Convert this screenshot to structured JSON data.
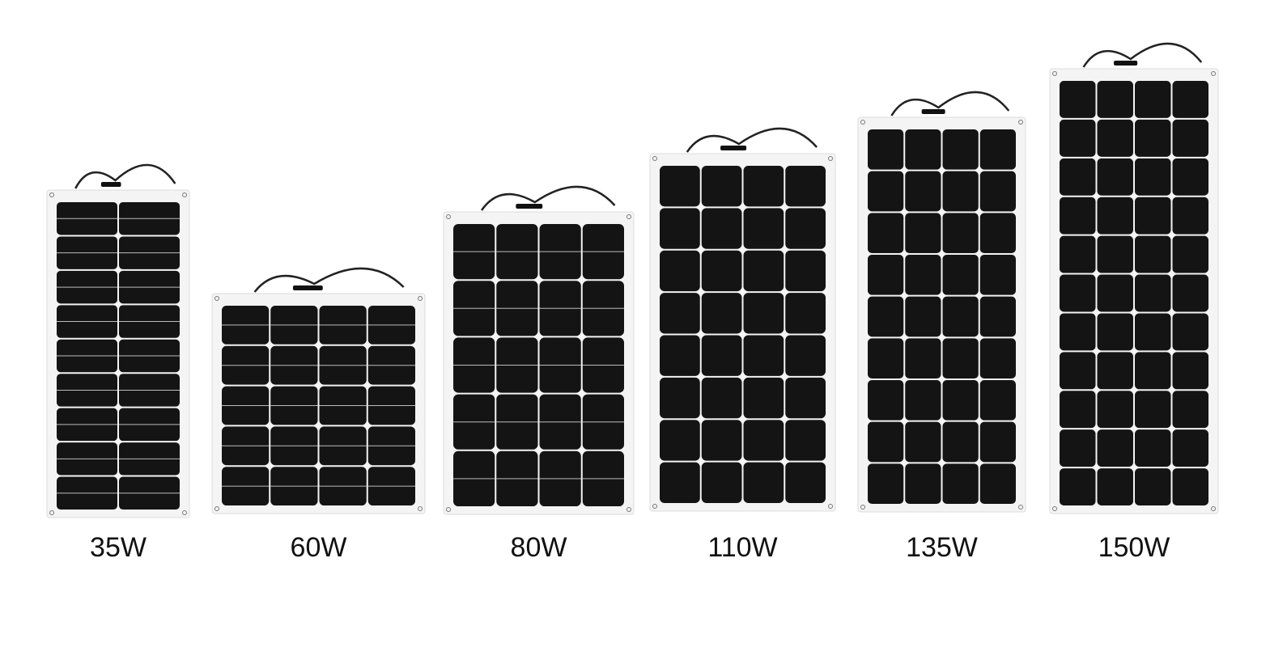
{
  "panels": [
    {
      "label": "35W"
    },
    {
      "label": "60W"
    },
    {
      "label": "80W"
    },
    {
      "label": "110W"
    },
    {
      "label": "135W"
    },
    {
      "label": "150W"
    }
  ]
}
